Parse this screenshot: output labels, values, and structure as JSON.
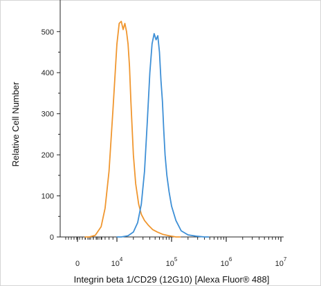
{
  "chart_data": {
    "type": "line",
    "title": "",
    "xlabel": "Integrin beta 1/CD29 (12G10) [Alexa Fluor® 488]",
    "ylabel": "Relative Cell Number",
    "xscale": "biexponential",
    "ylim": [
      0,
      550
    ],
    "y_ticks": [
      0,
      100,
      200,
      300,
      400,
      500
    ],
    "x_ticks": [
      {
        "value": 0,
        "label": "0",
        "exp": ""
      },
      {
        "value": 10000,
        "label": "10",
        "exp": "4"
      },
      {
        "value": 100000,
        "label": "10",
        "exp": "5"
      },
      {
        "value": 1000000,
        "label": "10",
        "exp": "6"
      },
      {
        "value": 10000000,
        "label": "10",
        "exp": "7"
      }
    ],
    "grid": false,
    "legend": "none",
    "series": [
      {
        "color": "#F0962E",
        "x": [
          3000,
          4500,
          6000,
          7000,
          8000,
          9000,
          10000,
          11000,
          12000,
          13000,
          14000,
          15000,
          16000,
          17000,
          18000,
          20000,
          22000,
          25000,
          28000,
          32000,
          38000,
          45000,
          55000,
          70000,
          90000,
          120000
        ],
        "y": [
          0,
          4,
          25,
          70,
          160,
          310,
          470,
          520,
          525,
          505,
          520,
          500,
          470,
          415,
          330,
          200,
          130,
          80,
          55,
          40,
          28,
          18,
          12,
          6,
          3,
          0
        ]
      },
      {
        "color": "#3D8FD6",
        "x": [
          12000,
          16000,
          20000,
          24000,
          28000,
          32000,
          36000,
          40000,
          44000,
          48000,
          52000,
          56000,
          60000,
          64000,
          68000,
          72000,
          76000,
          82000,
          90000,
          100000,
          120000,
          150000,
          200000,
          280000,
          400000
        ],
        "y": [
          0,
          3,
          12,
          35,
          80,
          160,
          280,
          400,
          470,
          495,
          480,
          490,
          450,
          380,
          330,
          260,
          200,
          150,
          110,
          75,
          40,
          15,
          5,
          2,
          0
        ]
      }
    ]
  }
}
